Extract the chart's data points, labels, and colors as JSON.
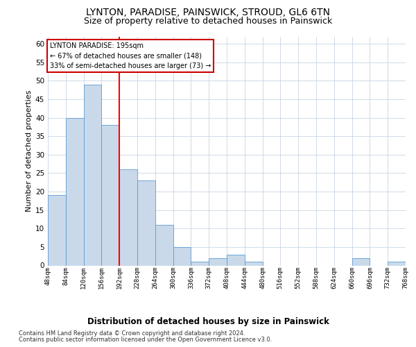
{
  "title1": "LYNTON, PARADISE, PAINSWICK, STROUD, GL6 6TN",
  "title2": "Size of property relative to detached houses in Painswick",
  "xlabel": "Distribution of detached houses by size in Painswick",
  "ylabel": "Number of detached properties",
  "bar_values": [
    19,
    40,
    49,
    38,
    26,
    23,
    11,
    5,
    1,
    2,
    3,
    1,
    0,
    0,
    0,
    0,
    0,
    2,
    0,
    1
  ],
  "tick_labels": [
    "48sqm",
    "84sqm",
    "120sqm",
    "156sqm",
    "192sqm",
    "228sqm",
    "264sqm",
    "300sqm",
    "336sqm",
    "372sqm",
    "408sqm",
    "444sqm",
    "480sqm",
    "516sqm",
    "552sqm",
    "588sqm",
    "624sqm",
    "660sqm",
    "696sqm",
    "732sqm",
    "768sqm"
  ],
  "bar_color": "#c9d9ea",
  "bar_edge_color": "#5b9bd5",
  "red_line_x": 3.5,
  "ylim": [
    0,
    62
  ],
  "yticks": [
    0,
    5,
    10,
    15,
    20,
    25,
    30,
    35,
    40,
    45,
    50,
    55,
    60
  ],
  "annotation_title": "LYNTON PARADISE: 195sqm",
  "annotation_line1": "← 67% of detached houses are smaller (148)",
  "annotation_line2": "33% of semi-detached houses are larger (73) →",
  "footnote1": "Contains HM Land Registry data © Crown copyright and database right 2024.",
  "footnote2": "Contains public sector information licensed under the Open Government Licence v3.0.",
  "bg_color": "#ffffff",
  "grid_color": "#c8d4e3",
  "title1_fontsize": 10,
  "title2_fontsize": 9,
  "xlabel_fontsize": 8.5,
  "ylabel_fontsize": 8,
  "annotation_fontsize": 7,
  "tick_fontsize": 6.5,
  "ytick_fontsize": 7.5,
  "footnote_fontsize": 6,
  "annotation_box_color": "#ffffff",
  "annotation_border_color": "#cc0000"
}
